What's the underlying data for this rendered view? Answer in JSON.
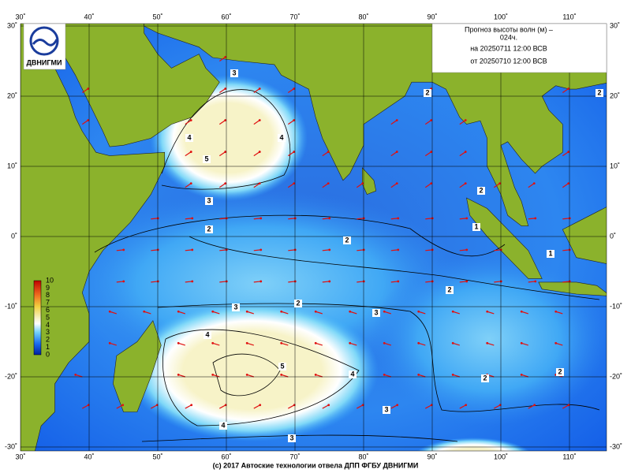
{
  "header": {
    "title_lines": [
      "Прогноз высоты волн (м) –",
      "024ч.",
      "на 20250711 12:00 ВСВ"
    ],
    "issued": "от 20250710 12:00 ВСВ"
  },
  "logo": {
    "text": "ДВНИГМИ"
  },
  "axes": {
    "lon": [
      "30˚",
      "40˚",
      "50˚",
      "60˚",
      "70˚",
      "80˚",
      "90˚",
      "100˚",
      "110˚"
    ],
    "lat": [
      "30˚",
      "20˚",
      "10˚",
      "0˚",
      "-10˚",
      "-20˚",
      "-30˚"
    ]
  },
  "legend": {
    "labels": [
      "10",
      "9",
      "8",
      "7",
      "6",
      "5",
      "4",
      "3",
      "2",
      "1",
      "0"
    ]
  },
  "contours": {
    "labels": [
      "3",
      "4",
      "5",
      "4",
      "3",
      "2",
      "2",
      "2",
      "2",
      "3",
      "3",
      "4",
      "5",
      "4",
      "4",
      "3",
      "3",
      "2",
      "2",
      "2",
      "2",
      "1",
      "1",
      "2"
    ]
  },
  "footer": "(с) 2017 Автоские технологии отвела ДПП ФГБУ ДВНИГМИ"
}
